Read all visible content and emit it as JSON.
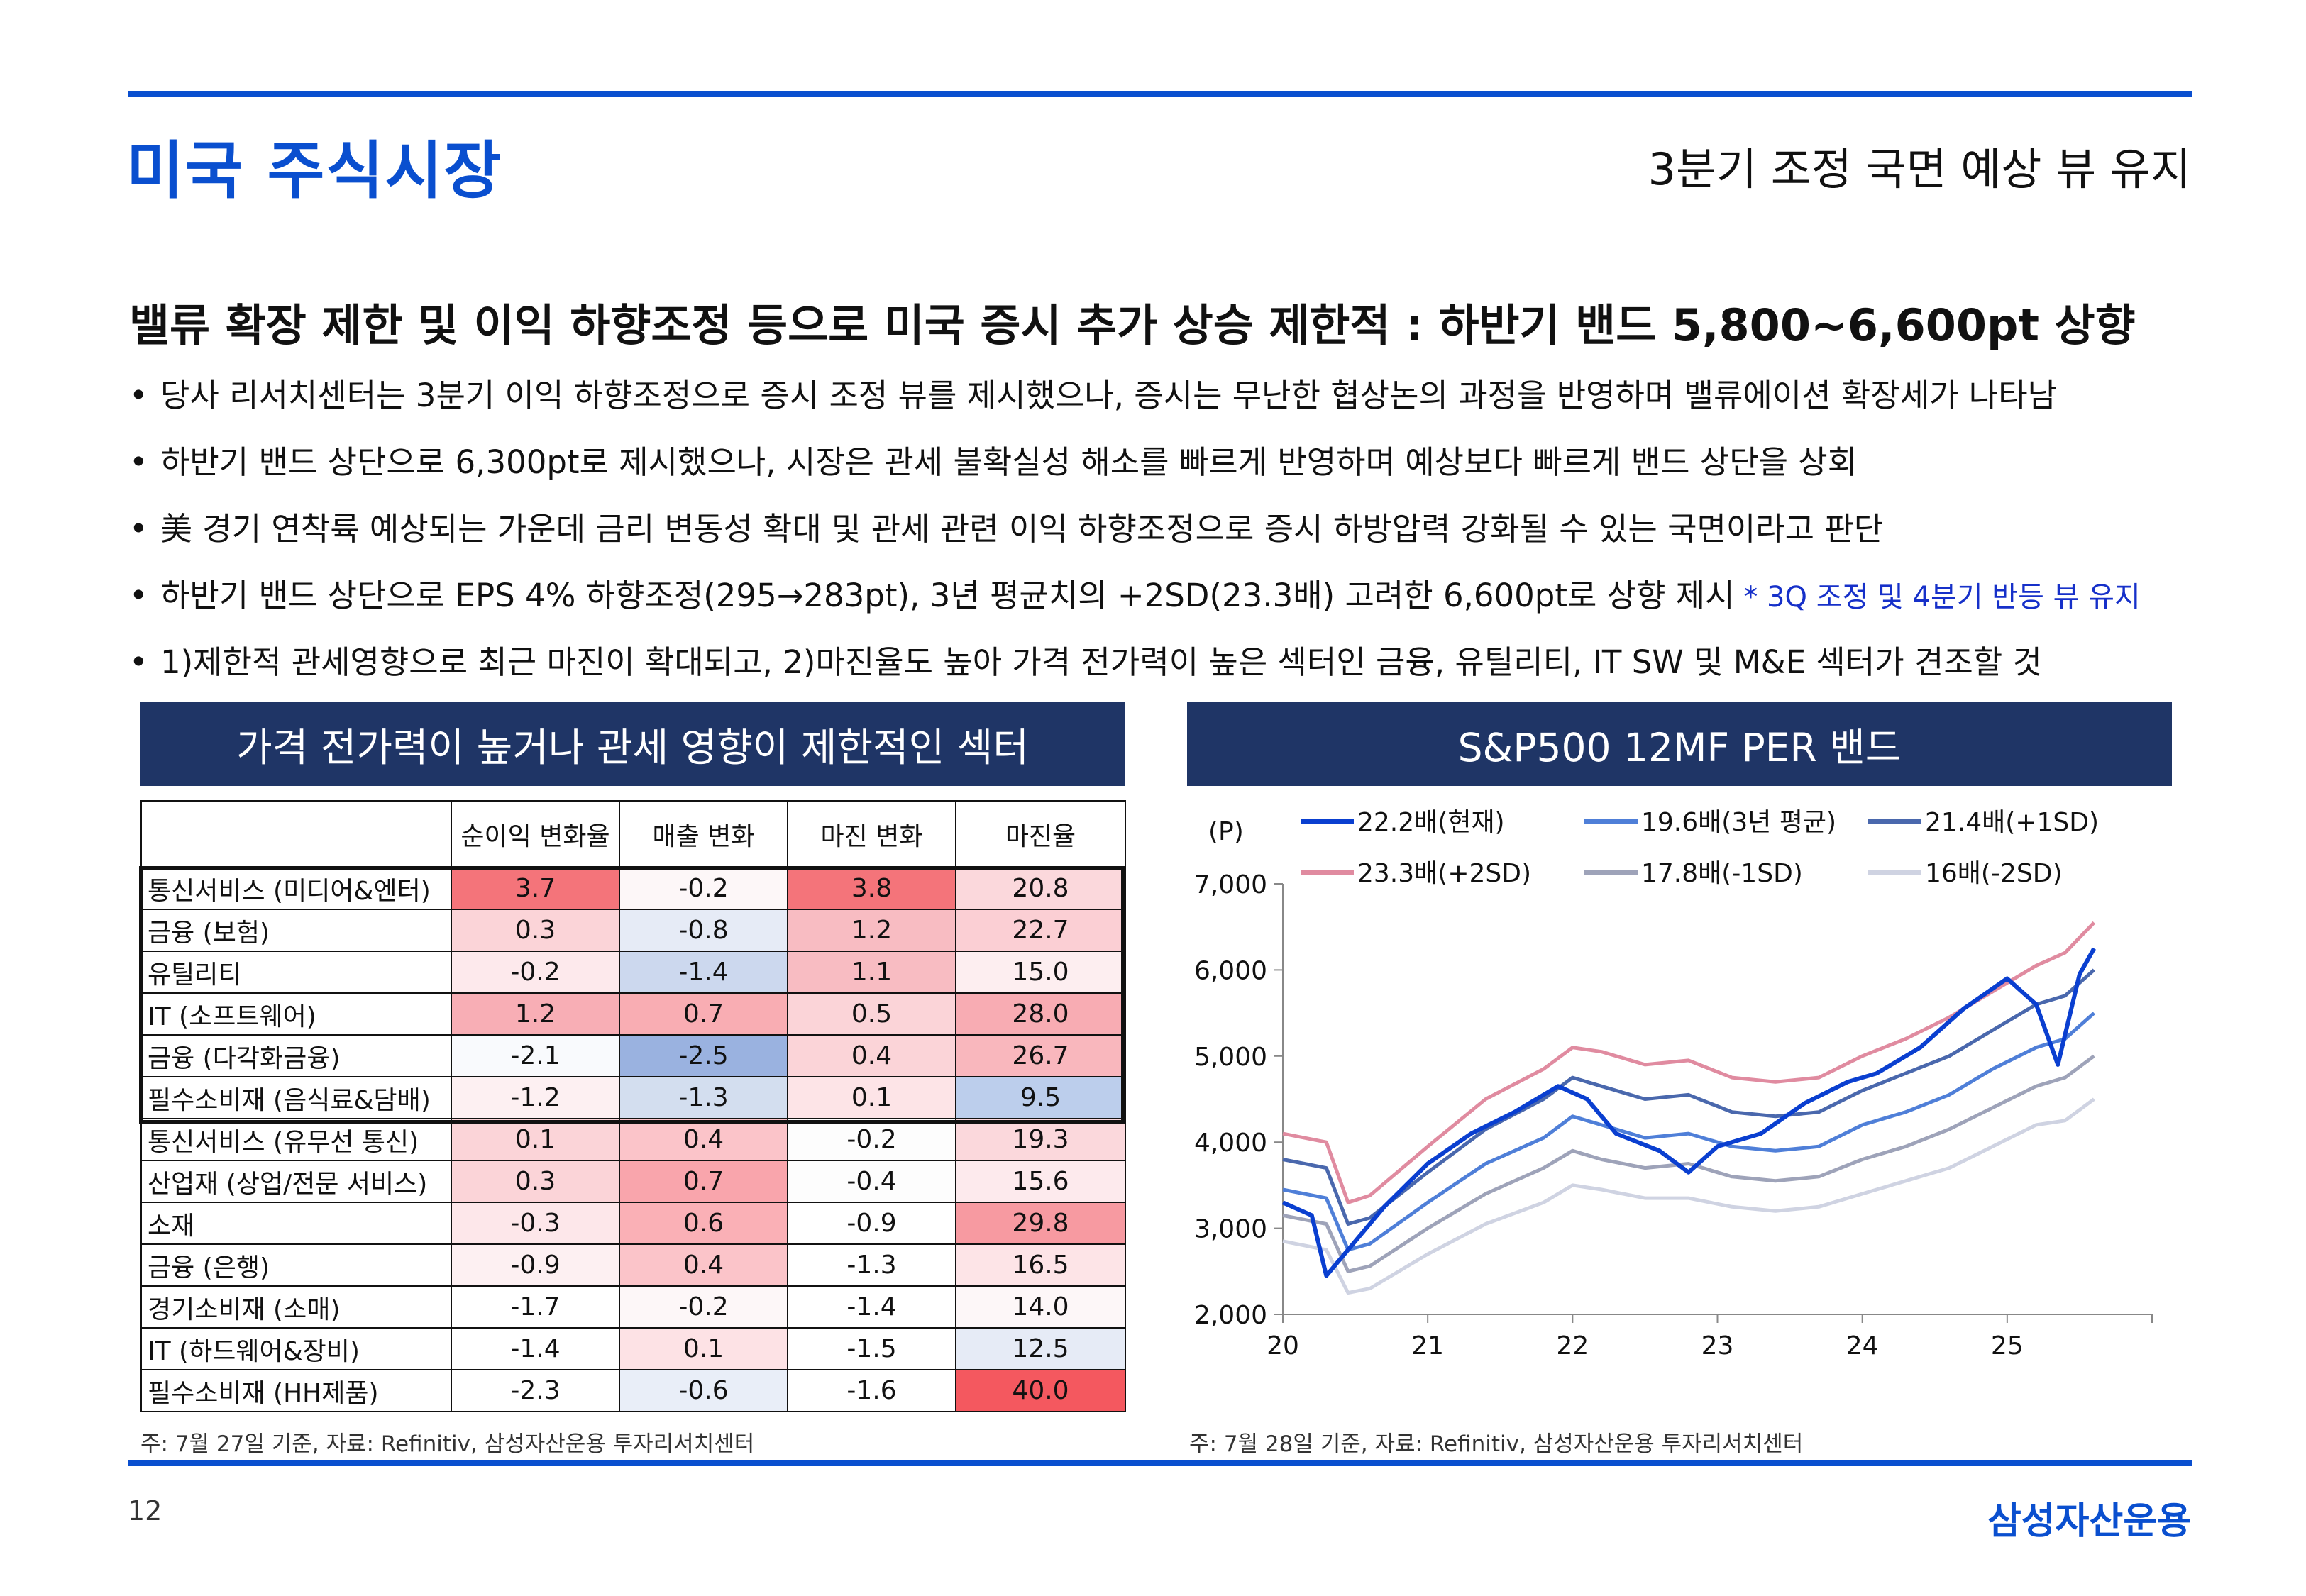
{
  "page": {
    "title": "미국 주식시장",
    "subtitle": "3분기 조정 국면 예상 뷰 유지",
    "number": "12",
    "brand": "삼성자산운용"
  },
  "headline": "밸류 확장 제한 및 이익 하향조정 등으로 미국 증시 추가 상승 제한적 : 하반기 밴드 5,800~6,600pt 상향",
  "bullets": [
    {
      "text": "당사 리서치센터는 3분기 이익 하향조정으로 증시 조정 뷰를 제시했으나, 증시는 무난한 협상논의 과정을 반영하며 밸류에이션 확장세가 나타남",
      "note": ""
    },
    {
      "text": "하반기 밴드 상단으로 6,300pt로 제시했으나, 시장은 관세 불확실성 해소를 빠르게 반영하며 예상보다 빠르게 밴드 상단을 상회",
      "note": ""
    },
    {
      "text": "美 경기 연착륙 예상되는 가운데 금리 변동성 확대 및 관세 관련 이익 하향조정으로 증시 하방압력 강화될 수 있는 국면이라고 판단",
      "note": ""
    },
    {
      "text": "하반기 밴드 상단으로 EPS 4% 하향조정(295→283pt), 3년 평균치의 +2SD(23.3배) 고려한 6,600pt로 상향 제시",
      "note": " * 3Q 조정 및 4분기 반등 뷰 유지"
    },
    {
      "text": "1)제한적 관세영향으로 최근 마진이 확대되고, 2)마진율도 높아 가격 전가력이 높은 섹터인  금융, 유틸리티, IT SW 및 M&E 섹터가 견조할 것",
      "note": ""
    }
  ],
  "left_panel": {
    "title": "가격 전가력이 높거나 관세 영향이 제한적인 섹터",
    "source": "주: 7월 27일 기준, 자료: Refinitiv, 삼성자산운용 투자리서치센터",
    "columns": [
      "",
      "순이익 변화율",
      "매출 변화",
      "마진 변화",
      "마진율"
    ],
    "rows": [
      {
        "name": "통신서비스 (미디어&엔터)",
        "values": [
          "3.7",
          "-0.2",
          "3.8",
          "20.8"
        ],
        "colors": [
          "#f4747a",
          "#fdf7f8",
          "#f4747a",
          "#fbd8dc"
        ]
      },
      {
        "name": "금융 (보험)",
        "values": [
          "0.3",
          "-0.8",
          "1.2",
          "22.7"
        ],
        "colors": [
          "#fbd4d8",
          "#e6ebf6",
          "#f8bcc2",
          "#fbcfd4"
        ]
      },
      {
        "name": "유틸리티",
        "values": [
          "-0.2",
          "-1.4",
          "1.1",
          "15.0"
        ],
        "colors": [
          "#fde9ec",
          "#ccd8ee",
          "#f8bcc2",
          "#fdeef0"
        ]
      },
      {
        "name": "IT (소프트웨어)",
        "values": [
          "1.2",
          "0.7",
          "0.5",
          "28.0"
        ],
        "colors": [
          "#f8aeb5",
          "#f9adb3",
          "#fbd4d8",
          "#f8acb3"
        ]
      },
      {
        "name": "금융 (다각화금융)",
        "values": [
          "-2.1",
          "-2.5",
          "0.4",
          "26.7"
        ],
        "colors": [
          "#f9fafd",
          "#9ab2e0",
          "#fbd4d8",
          "#f9b7bd"
        ]
      },
      {
        "name": "필수소비재 (음식료&담배)",
        "values": [
          "-1.2",
          "-1.3",
          "0.1",
          "9.5"
        ],
        "colors": [
          "#fdf0f2",
          "#d3deef",
          "#fde4e7",
          "#bcceec"
        ]
      },
      {
        "name": "통신서비스 (유무선 통신)",
        "values": [
          "0.1",
          "0.4",
          "-0.2",
          "19.3"
        ],
        "colors": [
          "#fbd4d8",
          "#fbc4c9",
          "#fdfdfd",
          "#fbd8dc"
        ]
      },
      {
        "name": "산업재 (상업/전문 서비스)",
        "values": [
          "0.3",
          "0.7",
          "-0.4",
          "15.6"
        ],
        "colors": [
          "#fbd4d8",
          "#f9a5ac",
          "#fdfdfd",
          "#fdeaed"
        ]
      },
      {
        "name": "소재",
        "values": [
          "-0.3",
          "0.6",
          "-0.9",
          "29.8"
        ],
        "colors": [
          "#fde7ea",
          "#fab0b6",
          "#ffffff",
          "#f79aa1"
        ]
      },
      {
        "name": "금융 (은행)",
        "values": [
          "-0.9",
          "0.4",
          "-1.3",
          "16.5"
        ],
        "colors": [
          "#fdf0f2",
          "#fbc4c9",
          "#ffffff",
          "#fde4e7"
        ]
      },
      {
        "name": "경기소비재 (소매)",
        "values": [
          "-1.7",
          "-0.2",
          "-1.4",
          "14.0"
        ],
        "colors": [
          "#ffffff",
          "#fdf7f8",
          "#ffffff",
          "#fdf7f8"
        ]
      },
      {
        "name": "IT (하드웨어&장비)",
        "values": [
          "-1.4",
          "0.1",
          "-1.5",
          "12.5"
        ],
        "colors": [
          "#ffffff",
          "#fde2e5",
          "#ffffff",
          "#e6ebf6"
        ]
      },
      {
        "name": "필수소비재 (HH제품)",
        "values": [
          "-2.3",
          "-0.6",
          "-1.6",
          "40.0"
        ],
        "colors": [
          "#ffffff",
          "#e9eef8",
          "#ffffff",
          "#f4585f"
        ]
      }
    ]
  },
  "right_panel": {
    "title": "S&P500 12MF PER 밴드",
    "source": "주: 7월 28일 기준, 자료: Refinitiv, 삼성자산운용 투자리서치센터"
  },
  "chart_data": {
    "type": "line",
    "title": "S&P500 12MF PER 밴드",
    "ylabel": "(P)",
    "ylim": [
      2000,
      7000
    ],
    "xlim": [
      20,
      26
    ],
    "yticks": [
      "7,000",
      "6,000",
      "5,000",
      "4,000",
      "3,000",
      "2,000"
    ],
    "ytick_values": [
      7000,
      6000,
      5000,
      4000,
      3000,
      2000
    ],
    "xticks": [
      "20",
      "21",
      "22",
      "23",
      "24",
      "25"
    ],
    "xtick_values": [
      20,
      21,
      22,
      23,
      24,
      25
    ],
    "grid": false,
    "legend_position": "top",
    "series": [
      {
        "name": "22.2배(현재)",
        "color": "#0a3fd0",
        "values": [
          [
            20.0,
            3300
          ],
          [
            20.2,
            3150
          ],
          [
            20.3,
            2450
          ],
          [
            20.5,
            2850
          ],
          [
            20.7,
            3250
          ],
          [
            21.0,
            3750
          ],
          [
            21.3,
            4100
          ],
          [
            21.6,
            4350
          ],
          [
            21.9,
            4650
          ],
          [
            22.1,
            4500
          ],
          [
            22.3,
            4100
          ],
          [
            22.6,
            3900
          ],
          [
            22.8,
            3650
          ],
          [
            23.0,
            3950
          ],
          [
            23.3,
            4100
          ],
          [
            23.6,
            4450
          ],
          [
            23.9,
            4700
          ],
          [
            24.1,
            4800
          ],
          [
            24.4,
            5100
          ],
          [
            24.7,
            5550
          ],
          [
            25.0,
            5900
          ],
          [
            25.2,
            5600
          ],
          [
            25.35,
            4900
          ],
          [
            25.5,
            5950
          ],
          [
            25.6,
            6250
          ]
        ]
      },
      {
        "name": "19.6배(3년 평균)",
        "color": "#4f7fd8",
        "values": [
          [
            20.0,
            3450
          ],
          [
            20.3,
            3350
          ],
          [
            20.45,
            2750
          ],
          [
            20.6,
            2820
          ],
          [
            21.0,
            3300
          ],
          [
            21.4,
            3750
          ],
          [
            21.8,
            4050
          ],
          [
            22.0,
            4300
          ],
          [
            22.2,
            4200
          ],
          [
            22.5,
            4050
          ],
          [
            22.8,
            4100
          ],
          [
            23.1,
            3950
          ],
          [
            23.4,
            3900
          ],
          [
            23.7,
            3950
          ],
          [
            24.0,
            4200
          ],
          [
            24.3,
            4350
          ],
          [
            24.6,
            4550
          ],
          [
            24.9,
            4850
          ],
          [
            25.2,
            5100
          ],
          [
            25.4,
            5200
          ],
          [
            25.6,
            5500
          ]
        ]
      },
      {
        "name": "21.4배(+1SD)",
        "color": "#4a68ad",
        "values": [
          [
            20.0,
            3800
          ],
          [
            20.3,
            3700
          ],
          [
            20.45,
            3050
          ],
          [
            20.6,
            3120
          ],
          [
            21.0,
            3650
          ],
          [
            21.4,
            4150
          ],
          [
            21.8,
            4500
          ],
          [
            22.0,
            4750
          ],
          [
            22.2,
            4650
          ],
          [
            22.5,
            4500
          ],
          [
            22.8,
            4550
          ],
          [
            23.1,
            4350
          ],
          [
            23.4,
            4300
          ],
          [
            23.7,
            4350
          ],
          [
            24.0,
            4600
          ],
          [
            24.3,
            4800
          ],
          [
            24.6,
            5000
          ],
          [
            24.9,
            5300
          ],
          [
            25.2,
            5600
          ],
          [
            25.4,
            5700
          ],
          [
            25.6,
            6000
          ]
        ]
      },
      {
        "name": "23.3배(+2SD)",
        "color": "#e08ba0",
        "values": [
          [
            20.0,
            4100
          ],
          [
            20.3,
            4000
          ],
          [
            20.45,
            3300
          ],
          [
            20.6,
            3380
          ],
          [
            21.0,
            3950
          ],
          [
            21.4,
            4500
          ],
          [
            21.8,
            4850
          ],
          [
            22.0,
            5100
          ],
          [
            22.2,
            5050
          ],
          [
            22.5,
            4900
          ],
          [
            22.8,
            4950
          ],
          [
            23.1,
            4750
          ],
          [
            23.4,
            4700
          ],
          [
            23.7,
            4750
          ],
          [
            24.0,
            5000
          ],
          [
            24.3,
            5200
          ],
          [
            24.6,
            5450
          ],
          [
            24.9,
            5750
          ],
          [
            25.2,
            6050
          ],
          [
            25.4,
            6200
          ],
          [
            25.6,
            6550
          ]
        ]
      },
      {
        "name": "17.8배(-1SD)",
        "color": "#9ea3b9",
        "values": [
          [
            20.0,
            3150
          ],
          [
            20.3,
            3050
          ],
          [
            20.45,
            2500
          ],
          [
            20.6,
            2560
          ],
          [
            21.0,
            3000
          ],
          [
            21.4,
            3400
          ],
          [
            21.8,
            3700
          ],
          [
            22.0,
            3900
          ],
          [
            22.2,
            3800
          ],
          [
            22.5,
            3700
          ],
          [
            22.8,
            3750
          ],
          [
            23.1,
            3600
          ],
          [
            23.4,
            3550
          ],
          [
            23.7,
            3600
          ],
          [
            24.0,
            3800
          ],
          [
            24.3,
            3950
          ],
          [
            24.6,
            4150
          ],
          [
            24.9,
            4400
          ],
          [
            25.2,
            4650
          ],
          [
            25.4,
            4750
          ],
          [
            25.6,
            5000
          ]
        ]
      },
      {
        "name": "16배(-2SD)",
        "color": "#cfd3e2",
        "values": [
          [
            20.0,
            2850
          ],
          [
            20.3,
            2750
          ],
          [
            20.45,
            2250
          ],
          [
            20.6,
            2300
          ],
          [
            21.0,
            2700
          ],
          [
            21.4,
            3050
          ],
          [
            21.8,
            3300
          ],
          [
            22.0,
            3500
          ],
          [
            22.2,
            3450
          ],
          [
            22.5,
            3350
          ],
          [
            22.8,
            3350
          ],
          [
            23.1,
            3250
          ],
          [
            23.4,
            3200
          ],
          [
            23.7,
            3250
          ],
          [
            24.0,
            3400
          ],
          [
            24.3,
            3550
          ],
          [
            24.6,
            3700
          ],
          [
            24.9,
            3950
          ],
          [
            25.2,
            4200
          ],
          [
            25.4,
            4250
          ],
          [
            25.6,
            4500
          ]
        ]
      }
    ]
  }
}
